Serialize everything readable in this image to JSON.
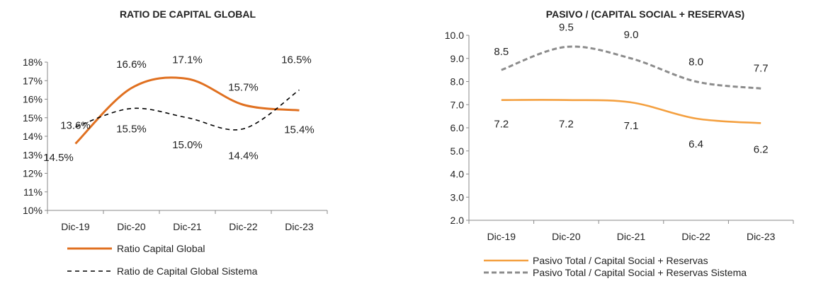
{
  "chart_data": [
    {
      "type": "line",
      "title": "RATIO DE CAPITAL GLOBAL",
      "categories": [
        "Dic-19",
        "Dic-20",
        "Dic-21",
        "Dic-22",
        "Dic-23"
      ],
      "y_ticks": [
        "10%",
        "11%",
        "12%",
        "13%",
        "14%",
        "15%",
        "16%",
        "17%",
        "18%"
      ],
      "ylim": [
        10,
        18
      ],
      "grid": false,
      "legend_position": "bottom-left",
      "series": [
        {
          "name": "Ratio Capital Global",
          "values": [
            13.6,
            16.6,
            17.1,
            15.7,
            15.4
          ],
          "labels": [
            "13.6%",
            "16.6%",
            "17.1%",
            "15.7%",
            "15.4%"
          ],
          "color": "#E07020",
          "style": "solid"
        },
        {
          "name": "Ratio de Capital Global Sistema",
          "values": [
            14.5,
            15.5,
            15.0,
            14.4,
            16.5
          ],
          "labels": [
            "14.5%",
            "15.5%",
            "15.0%",
            "14.4%",
            "16.5%"
          ],
          "color": "#000000",
          "style": "dashed"
        }
      ]
    },
    {
      "type": "line",
      "title": "PASIVO / (CAPITAL SOCIAL + RESERVAS)",
      "categories": [
        "Dic-19",
        "Dic-20",
        "Dic-21",
        "Dic-22",
        "Dic-23"
      ],
      "y_ticks": [
        "2.0",
        "3.0",
        "4.0",
        "5.0",
        "6.0",
        "7.0",
        "8.0",
        "9.0",
        "10.0"
      ],
      "ylim": [
        2,
        10
      ],
      "grid": false,
      "legend_position": "bottom",
      "series": [
        {
          "name": "Pasivo Total / Capital Social + Reservas",
          "values": [
            7.2,
            7.2,
            7.1,
            6.4,
            6.2
          ],
          "labels": [
            "7.2",
            "7.2",
            "7.1",
            "6.4",
            "6.2"
          ],
          "color": "#F4A040",
          "style": "solid"
        },
        {
          "name": "Pasivo Total / Capital Social + Reservas Sistema",
          "values": [
            8.5,
            9.5,
            9.0,
            8.0,
            7.7
          ],
          "labels": [
            "8.5",
            "9.5",
            "9.0",
            "8.0",
            "7.7"
          ],
          "color": "#8C8C8C",
          "style": "dashed"
        }
      ]
    }
  ]
}
